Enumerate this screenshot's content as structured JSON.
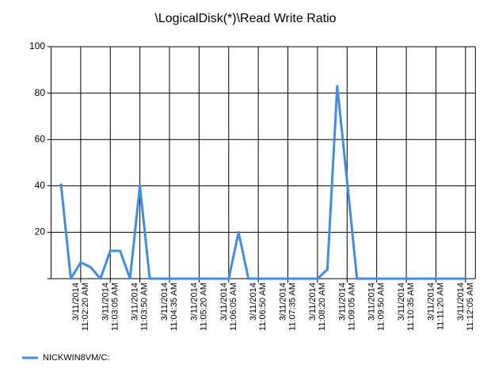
{
  "chart_data": {
    "type": "line",
    "title": "\\LogicalDisk(*)\\Read Write Ratio",
    "categories": [
      null,
      null,
      "3/11/2014 11:02:20 AM",
      null,
      null,
      "3/11/2014 11:03:05 AM",
      null,
      null,
      "3/11/2014 11:03:50 AM",
      null,
      null,
      "3/11/2014 11:04:35 AM",
      null,
      null,
      "3/11/2014 11:05:20 AM",
      null,
      null,
      "3/11/2014 11:06:05 AM",
      null,
      null,
      "3/11/2014 11:06:50 AM",
      null,
      null,
      "3/11/2014 11:07:35 AM",
      null,
      null,
      "3/11/2014 11:08:20 AM",
      null,
      null,
      "3/11/2014 11:09:05 AM",
      null,
      null,
      "3/11/2014 11:09:50 AM",
      null,
      null,
      "3/11/2014 11:10:35 AM",
      null,
      null,
      "3/11/2014 11:11:20 AM",
      null,
      null,
      "3/11/2014 11:12:05 AM"
    ],
    "series": [
      {
        "name": "NICKWIN8VM/C:",
        "color": "#3f8de4",
        "values": [
          41,
          0,
          7,
          5,
          0,
          12,
          12,
          0,
          40,
          0,
          0,
          0,
          0,
          0,
          0,
          0,
          0,
          0,
          20,
          0,
          0,
          0,
          0,
          0,
          0,
          0,
          0,
          4,
          83,
          42,
          0,
          0,
          0,
          0,
          0,
          0,
          0,
          0,
          0,
          0,
          0,
          0
        ]
      }
    ],
    "ylim": [
      0,
      100
    ],
    "yticks": [
      20,
      40,
      60,
      80,
      100
    ],
    "grid": true,
    "legend": "bottom-left"
  }
}
